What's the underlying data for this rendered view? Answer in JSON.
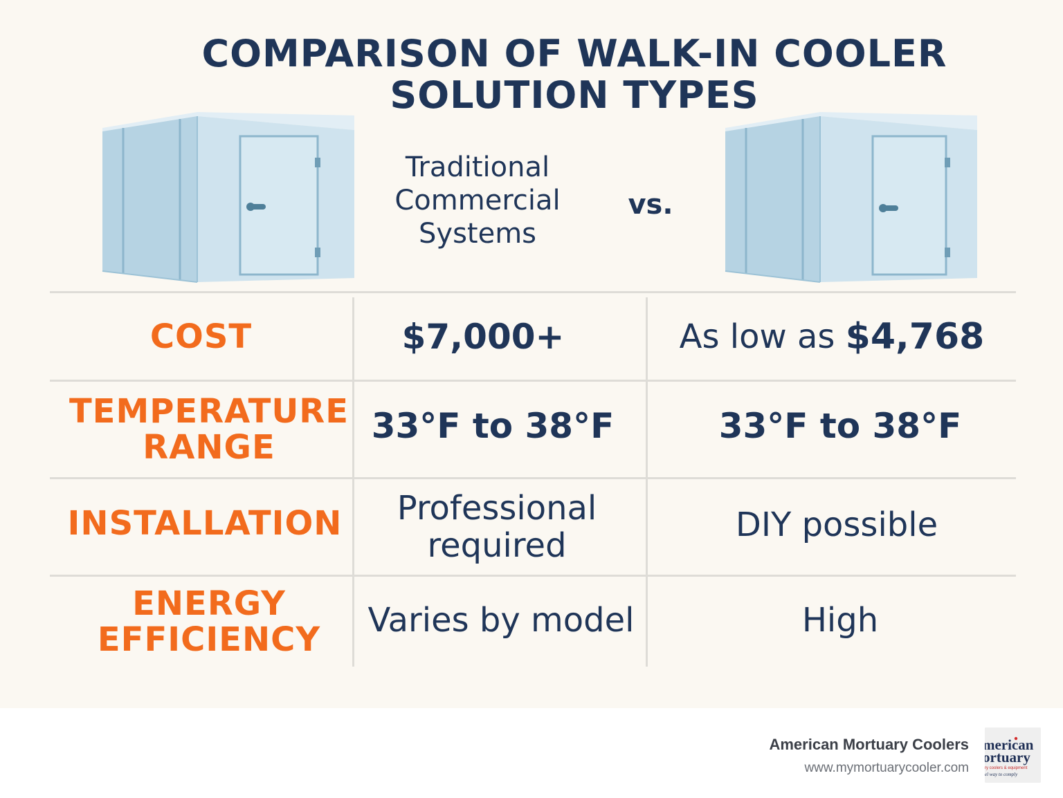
{
  "title_line1": "COMPARISON OF WALK-IN COOLER",
  "title_line2": "SOLUTION TYPES",
  "columns": {
    "left_line1": "Traditional",
    "left_line2": "Commercial",
    "left_line3": "Systems",
    "vs": "vs."
  },
  "rows": [
    {
      "label_line1": "COST",
      "label_line2": "",
      "left": "$7,000+",
      "right_prefix": "As low as ",
      "right_value": "$4,768"
    },
    {
      "label_line1": "TEMPERATURE",
      "label_line2": "RANGE",
      "left": "33°F to 38°F",
      "right": "33°F to 38°F"
    },
    {
      "label_line1": "INSTALLATION",
      "label_line2": "",
      "left_line1": "Professional",
      "left_line2": "required",
      "right": "DIY possible"
    },
    {
      "label_line1": "ENERGY",
      "label_line2": "EFFICIENCY",
      "left": "Varies by model",
      "right": "High"
    }
  ],
  "footer": {
    "company": "American Mortuary Coolers",
    "url": "www.mymortuarycooler.com"
  },
  "logo_text": {
    "line1": "merican",
    "line2": "ortuary",
    "line3": "ry coolers & equipment",
    "line4": "el way to comply"
  },
  "colors": {
    "navy": "#1f3558",
    "orange": "#f26b1d",
    "background": "#fbf8f2",
    "divider": "#dedcd7",
    "cooler_front": "#cfe3ee",
    "cooler_side": "#b6d3e3"
  }
}
